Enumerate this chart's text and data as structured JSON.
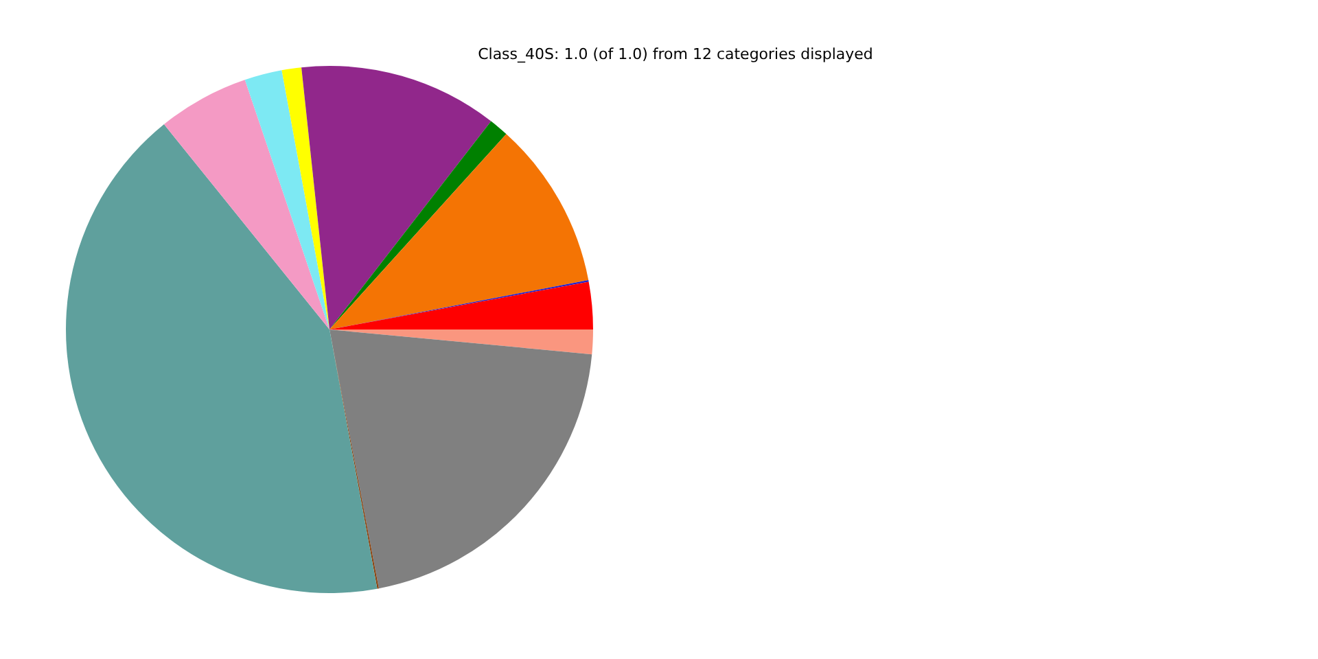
{
  "chart_data": {
    "type": "pie",
    "title": "Class_40S: 1.0 (of 1.0) from 12 categories displayed",
    "categories": [
      null,
      null,
      null,
      null,
      null,
      null,
      null,
      null,
      null,
      null,
      null,
      null
    ],
    "values": [
      1.5,
      20.5,
      0.1,
      42.1,
      5.6,
      2.3,
      1.2,
      12.2,
      1.2,
      10.3,
      0.1,
      2.9
    ],
    "colors": [
      "#fa967f",
      "#808080",
      "#8b4513",
      "#5fa09d",
      "#f49ac4",
      "#7de9f3",
      "#ffff00",
      "#91278b",
      "#008000",
      "#f47404",
      "#2222cc",
      "#ff0000"
    ]
  }
}
